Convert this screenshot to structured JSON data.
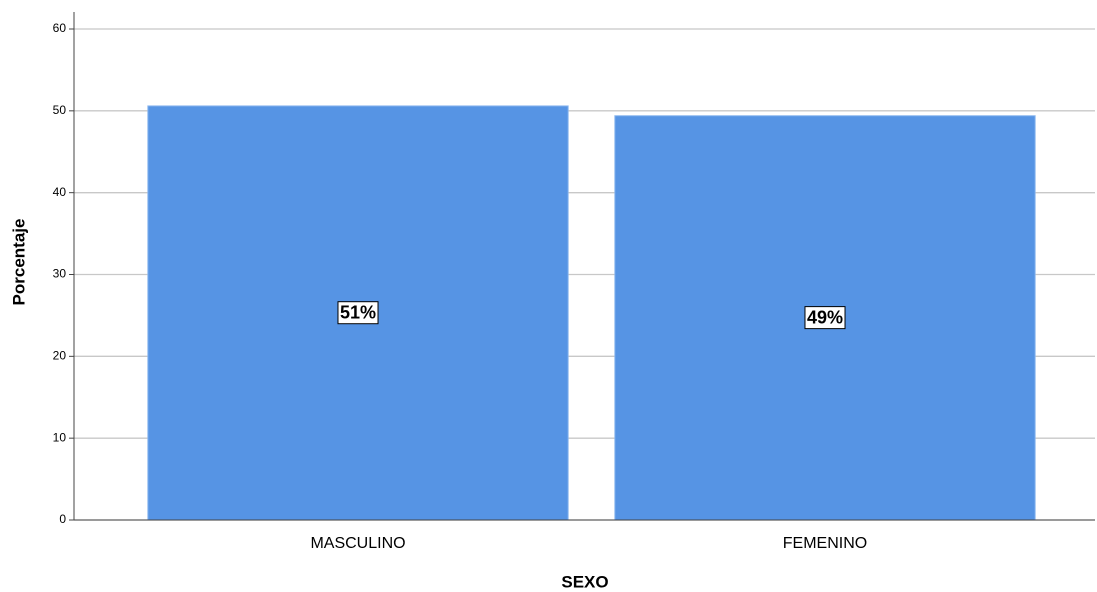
{
  "chart_data": {
    "type": "bar",
    "x_label": "SEXO",
    "y_label": "Porcentaje",
    "categories": [
      "MASCULINO",
      "FEMENINO"
    ],
    "values": [
      50.6,
      49.4
    ],
    "value_labels": [
      "51%",
      "49%"
    ],
    "color": "#5694e4",
    "ylim": [
      0,
      60
    ],
    "yticks": [
      0,
      10,
      20,
      30,
      40,
      50,
      60
    ],
    "grid": true
  }
}
